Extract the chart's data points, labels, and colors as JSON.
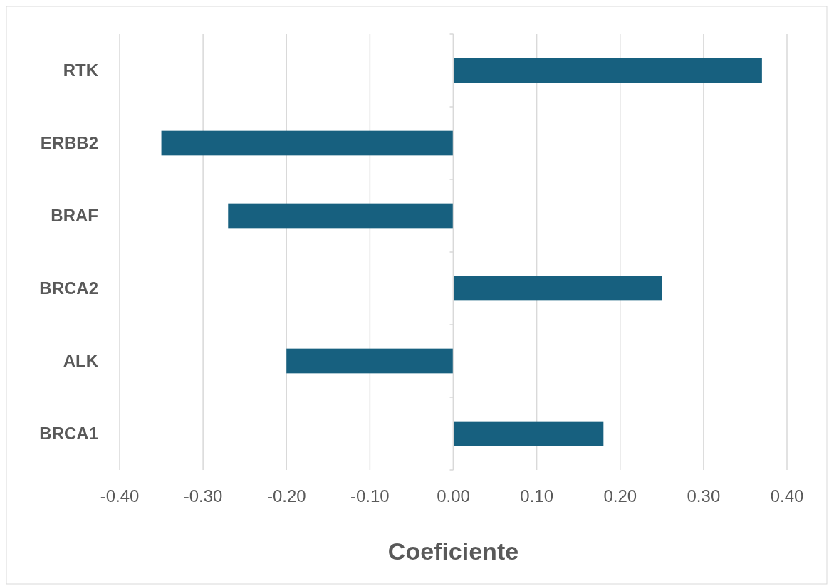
{
  "chart_data": {
    "type": "bar",
    "orientation": "horizontal",
    "xlabel": "Coeficiente",
    "categories": [
      "RTK",
      "ERBB2",
      "BRAF",
      "BRCA2",
      "ALK",
      "BRCA1"
    ],
    "values": [
      0.37,
      -0.35,
      -0.27,
      0.25,
      -0.2,
      0.18
    ],
    "color": "#17607f",
    "xlim": [
      -0.4,
      0.4
    ],
    "xticks": [
      {
        "value": -0.4,
        "label": "-0.40"
      },
      {
        "value": -0.3,
        "label": "-0.30"
      },
      {
        "value": -0.2,
        "label": "-0.20"
      },
      {
        "value": -0.1,
        "label": "-0.10"
      },
      {
        "value": 0,
        "label": "0.00"
      },
      {
        "value": 0.1,
        "label": "0.10"
      },
      {
        "value": 0.2,
        "label": "0.20"
      },
      {
        "value": 0.3,
        "label": "0.30"
      },
      {
        "value": 0.4,
        "label": "0.40"
      }
    ],
    "grid": "x"
  }
}
